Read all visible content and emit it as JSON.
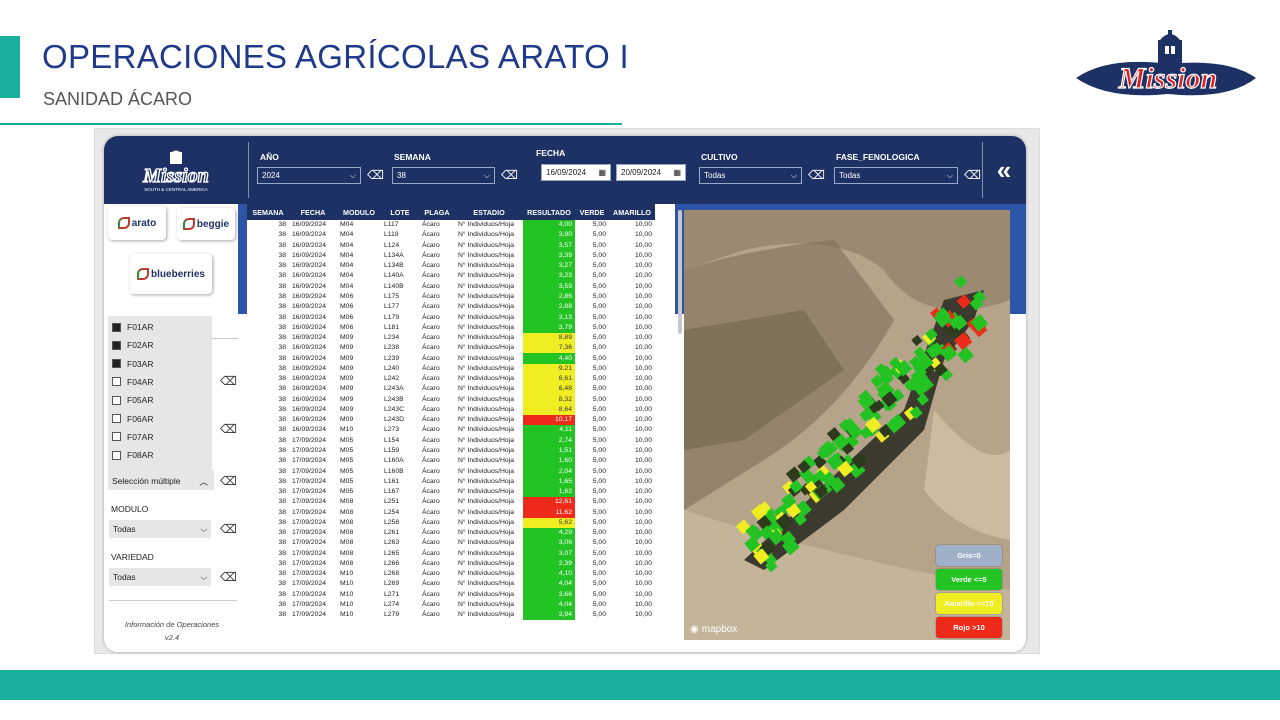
{
  "page": {
    "title": "OPERACIONES AGRÍCOLAS ARATO I",
    "subtitle": "SANIDAD ÁCARO",
    "logo_text": "Mission"
  },
  "header": {
    "logo_text": "Mission",
    "logo_sub": "SOUTH & CENTRAL AMERICA",
    "anio": {
      "label": "AÑO",
      "value": "2024"
    },
    "semana": {
      "label": "SEMANA",
      "value": "38"
    },
    "fecha": {
      "label": "FECHA",
      "from": "16/09/2024",
      "to": "20/09/2024"
    },
    "cultivo": {
      "label": "CULTIVO",
      "value": "Todas"
    },
    "fase": {
      "label": "FASE_FENOLOGICA",
      "value": "Todas"
    },
    "back_icon": "«"
  },
  "brands": {
    "arato": "arato",
    "beggie": "beggie",
    "blueberries": "blueberries"
  },
  "filters": {
    "lotes": [
      {
        "label": "F01AR",
        "checked": true
      },
      {
        "label": "F02AR",
        "checked": true
      },
      {
        "label": "F03AR",
        "checked": true
      },
      {
        "label": "F04AR",
        "checked": false
      },
      {
        "label": "F05AR",
        "checked": false
      },
      {
        "label": "F06AR",
        "checked": false
      },
      {
        "label": "F07AR",
        "checked": false
      },
      {
        "label": "F08AR",
        "checked": false
      }
    ],
    "multi_label": "Selección múltiple",
    "modulo": {
      "label": "MODULO",
      "value": "Todas"
    },
    "variedad": {
      "label": "VARIEDAD",
      "value": "Todas"
    },
    "info": "Información de Operaciones v2.4"
  },
  "table": {
    "columns": [
      "SEMANA",
      "FECHA",
      "MODULO",
      "LOTE",
      "PLAGA",
      "ESTADIO",
      "RESULTADO",
      "VERDE",
      "AMARILLO"
    ],
    "rows": [
      [
        "38",
        "16/09/2024",
        "M04",
        "L117",
        "Ácaro",
        "N° Individuos/Hoja",
        "4,00",
        "5,00",
        "10,00"
      ],
      [
        "38",
        "16/09/2024",
        "M04",
        "L118",
        "Ácaro",
        "N° Individuos/Hoja",
        "3,90",
        "5,00",
        "10,00"
      ],
      [
        "38",
        "16/09/2024",
        "M04",
        "L124",
        "Ácaro",
        "N° Individuos/Hoja",
        "3,57",
        "5,00",
        "10,00"
      ],
      [
        "38",
        "16/09/2024",
        "M04",
        "L134A",
        "Ácaro",
        "N° Individuos/Hoja",
        "3,39",
        "5,00",
        "10,00"
      ],
      [
        "38",
        "16/09/2024",
        "M04",
        "L134B",
        "Ácaro",
        "N° Individuos/Hoja",
        "3,27",
        "5,00",
        "10,00"
      ],
      [
        "38",
        "16/09/2024",
        "M04",
        "L140A",
        "Ácaro",
        "N° Individuos/Hoja",
        "3,23",
        "5,00",
        "10,00"
      ],
      [
        "38",
        "16/09/2024",
        "M04",
        "L140B",
        "Ácaro",
        "N° Individuos/Hoja",
        "3,59",
        "5,00",
        "10,00"
      ],
      [
        "38",
        "16/09/2024",
        "M06",
        "L175",
        "Ácaro",
        "N° Individuos/Hoja",
        "2,86",
        "5,00",
        "10,00"
      ],
      [
        "38",
        "16/09/2024",
        "M06",
        "L177",
        "Ácaro",
        "N° Individuos/Hoja",
        "2,88",
        "5,00",
        "10,00"
      ],
      [
        "38",
        "16/09/2024",
        "M06",
        "L179",
        "Ácaro",
        "N° Individuos/Hoja",
        "3,13",
        "5,00",
        "10,00"
      ],
      [
        "38",
        "16/09/2024",
        "M06",
        "L181",
        "Ácaro",
        "N° Individuos/Hoja",
        "3,79",
        "5,00",
        "10,00"
      ],
      [
        "38",
        "16/09/2024",
        "M09",
        "L234",
        "Ácaro",
        "N° Individuos/Hoja",
        "8,89",
        "5,00",
        "10,00"
      ],
      [
        "38",
        "16/09/2024",
        "M09",
        "L238",
        "Ácaro",
        "N° Individuos/Hoja",
        "7,36",
        "5,00",
        "10,00"
      ],
      [
        "38",
        "16/09/2024",
        "M09",
        "L239",
        "Ácaro",
        "N° Individuos/Hoja",
        "4,40",
        "5,00",
        "10,00"
      ],
      [
        "38",
        "16/09/2024",
        "M09",
        "L240",
        "Ácaro",
        "N° Individuos/Hoja",
        "9,21",
        "5,00",
        "10,00"
      ],
      [
        "38",
        "16/09/2024",
        "M09",
        "L242",
        "Ácaro",
        "N° Individuos/Hoja",
        "6,61",
        "5,00",
        "10,00"
      ],
      [
        "38",
        "16/09/2024",
        "M09",
        "L243A",
        "Ácaro",
        "N° Individuos/Hoja",
        "6,48",
        "5,00",
        "10,00"
      ],
      [
        "38",
        "16/09/2024",
        "M09",
        "L243B",
        "Ácaro",
        "N° Individuos/Hoja",
        "8,32",
        "5,00",
        "10,00"
      ],
      [
        "38",
        "16/09/2024",
        "M09",
        "L243C",
        "Ácaro",
        "N° Individuos/Hoja",
        "8,64",
        "5,00",
        "10,00"
      ],
      [
        "38",
        "16/09/2024",
        "M09",
        "L243D",
        "Ácaro",
        "N° Individuos/Hoja",
        "10,17",
        "5,00",
        "10,00"
      ],
      [
        "38",
        "16/09/2024",
        "M10",
        "L273",
        "Ácaro",
        "N° Individuos/Hoja",
        "4,11",
        "5,00",
        "10,00"
      ],
      [
        "38",
        "17/09/2024",
        "M05",
        "L154",
        "Ácaro",
        "N° Individuos/Hoja",
        "2,74",
        "5,00",
        "10,00"
      ],
      [
        "38",
        "17/09/2024",
        "M05",
        "L159",
        "Ácaro",
        "N° Individuos/Hoja",
        "1,51",
        "5,00",
        "10,00"
      ],
      [
        "38",
        "17/09/2024",
        "M05",
        "L160A",
        "Ácaro",
        "N° Individuos/Hoja",
        "1,60",
        "5,00",
        "10,00"
      ],
      [
        "38",
        "17/09/2024",
        "M05",
        "L160B",
        "Ácaro",
        "N° Individuos/Hoja",
        "2,04",
        "5,00",
        "10,00"
      ],
      [
        "38",
        "17/09/2024",
        "M05",
        "L161",
        "Ácaro",
        "N° Individuos/Hoja",
        "1,65",
        "5,00",
        "10,00"
      ],
      [
        "38",
        "17/09/2024",
        "M05",
        "L167",
        "Ácaro",
        "N° Individuos/Hoja",
        "1,62",
        "5,00",
        "10,00"
      ],
      [
        "38",
        "17/09/2024",
        "M08",
        "L251",
        "Ácaro",
        "N° Individuos/Hoja",
        "12,61",
        "5,00",
        "10,00"
      ],
      [
        "38",
        "17/09/2024",
        "M08",
        "L254",
        "Ácaro",
        "N° Individuos/Hoja",
        "11,62",
        "5,00",
        "10,00"
      ],
      [
        "38",
        "17/09/2024",
        "M08",
        "L258",
        "Ácaro",
        "N° Individuos/Hoja",
        "5,62",
        "5,00",
        "10,00"
      ],
      [
        "38",
        "17/09/2024",
        "M08",
        "L261",
        "Ácaro",
        "N° Individuos/Hoja",
        "4,29",
        "5,00",
        "10,00"
      ],
      [
        "38",
        "17/09/2024",
        "M08",
        "L263",
        "Ácaro",
        "N° Individuos/Hoja",
        "3,06",
        "5,00",
        "10,00"
      ],
      [
        "38",
        "17/09/2024",
        "M08",
        "L265",
        "Ácaro",
        "N° Individuos/Hoja",
        "3,07",
        "5,00",
        "10,00"
      ],
      [
        "38",
        "17/09/2024",
        "M08",
        "L266",
        "Ácaro",
        "N° Individuos/Hoja",
        "2,39",
        "5,00",
        "10,00"
      ],
      [
        "38",
        "17/09/2024",
        "M10",
        "L268",
        "Ácaro",
        "N° Individuos/Hoja",
        "4,10",
        "5,00",
        "10,00"
      ],
      [
        "38",
        "17/09/2024",
        "M10",
        "L269",
        "Ácaro",
        "N° Individuos/Hoja",
        "4,04",
        "5,00",
        "10,00"
      ],
      [
        "38",
        "17/09/2024",
        "M10",
        "L271",
        "Ácaro",
        "N° Individuos/Hoja",
        "3,66",
        "5,00",
        "10,00"
      ],
      [
        "38",
        "17/09/2024",
        "M10",
        "L274",
        "Ácaro",
        "N° Individuos/Hoja",
        "4,04",
        "5,00",
        "10,00"
      ],
      [
        "38",
        "17/09/2024",
        "M10",
        "L279",
        "Ácaro",
        "N° Individuos/Hoja",
        "3,94",
        "5,00",
        "10,00"
      ]
    ]
  },
  "colors": {
    "verde": "#22c322",
    "amarillo": "#f0ee22",
    "rojo": "#ee2a1a",
    "gris": "#9fb0c8"
  },
  "map": {
    "attribution": "mapbox"
  },
  "legend": [
    {
      "label": "Gris=0",
      "color": "#9fb0c8",
      "text": "#ffffff"
    },
    {
      "label": "Verde <=5",
      "color": "#22c322",
      "text": "#ffffff"
    },
    {
      "label": "Amarillo <=10",
      "color": "#f0ee22",
      "text": "#ffffff"
    },
    {
      "label": "Rojo >10",
      "color": "#ee2a1a",
      "text": "#ffffff"
    }
  ]
}
